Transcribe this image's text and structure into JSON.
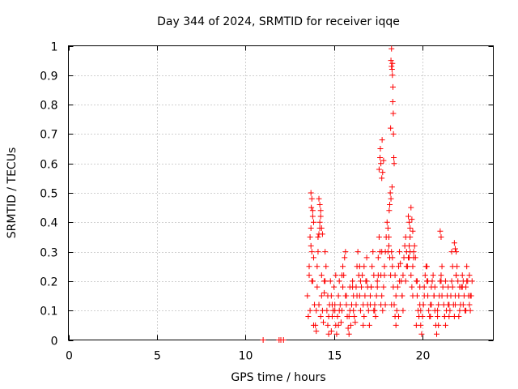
{
  "chart_data": {
    "type": "scatter",
    "title": "Day 344 of 2024, SRMTID for receiver iqqe",
    "xlabel": "GPS time / hours",
    "ylabel": "SRMTID / TECUs",
    "xlim": [
      0,
      24
    ],
    "ylim": [
      0,
      1
    ],
    "xticks": [
      "0",
      "5",
      "10",
      "15",
      "20"
    ],
    "xtick_values": [
      0,
      5,
      10,
      15,
      20
    ],
    "yticks": [
      "0",
      "0.1",
      "0.2",
      "0.3",
      "0.4",
      "0.5",
      "0.6",
      "0.7",
      "0.8",
      "0.9",
      "1"
    ],
    "ytick_values": [
      0,
      0.1,
      0.2,
      0.3,
      0.4,
      0.5,
      0.6,
      0.7,
      0.8,
      0.9,
      1.0
    ],
    "grid": true,
    "marker": "plus",
    "color": "#ff0000",
    "series": [
      {
        "name": "SRMTID",
        "x": [
          11.0,
          11.9,
          12.0,
          12.15,
          13.5,
          13.55,
          13.6,
          13.65,
          13.7,
          13.72,
          13.75,
          13.8,
          13.85,
          13.9,
          13.95,
          14.0,
          14.05,
          14.1,
          14.15,
          14.2,
          14.25,
          14.3,
          14.35,
          14.4,
          14.45,
          14.5,
          14.55,
          14.6,
          14.65,
          14.7,
          14.75,
          14.8,
          14.85,
          14.9,
          14.95,
          15.0,
          15.05,
          15.1,
          15.15,
          15.2,
          15.25,
          15.3,
          15.35,
          15.4,
          15.45,
          15.5,
          15.55,
          15.6,
          15.65,
          15.7,
          15.75,
          15.8,
          15.85,
          15.9,
          15.95,
          16.0,
          16.05,
          16.1,
          16.15,
          16.2,
          16.25,
          16.3,
          16.35,
          16.4,
          16.45,
          16.5,
          16.55,
          16.6,
          16.65,
          16.7,
          16.75,
          16.8,
          16.85,
          16.9,
          16.95,
          17.0,
          17.05,
          17.1,
          17.15,
          17.2,
          17.25,
          17.3,
          17.35,
          17.4,
          17.45,
          17.5,
          17.55,
          17.6,
          17.65,
          17.7,
          17.75,
          17.8,
          17.85,
          17.9,
          17.95,
          18.0,
          18.05,
          18.1,
          18.15,
          18.2,
          18.25,
          18.3,
          18.35,
          18.4,
          18.45,
          18.5,
          18.55,
          18.6,
          18.65,
          18.7,
          18.75,
          18.8,
          18.85,
          18.9,
          18.95,
          19.0,
          19.05,
          19.1,
          19.15,
          19.2,
          19.25,
          19.3,
          19.35,
          19.4,
          19.45,
          19.5,
          19.55,
          19.6,
          19.65,
          19.7,
          19.75,
          19.8,
          19.85,
          19.9,
          19.95,
          20.0,
          20.05,
          20.1,
          20.15,
          20.2,
          20.25,
          20.3,
          20.35,
          20.4,
          20.45,
          20.5,
          20.55,
          20.6,
          20.65,
          20.7,
          20.75,
          20.8,
          20.85,
          20.9,
          20.95,
          21.0,
          21.05,
          21.1,
          21.15,
          21.2,
          21.25,
          21.3,
          21.35,
          21.4,
          21.45,
          21.5,
          21.55,
          21.6,
          21.65,
          21.7,
          21.75,
          21.8,
          21.85,
          21.9,
          21.95,
          22.0,
          22.05,
          22.1,
          22.15,
          22.2,
          22.25,
          22.3,
          22.35,
          22.4,
          22.45,
          22.5,
          22.55,
          22.6,
          22.65,
          22.7,
          22.75,
          22.8,
          13.6,
          13.7,
          13.8,
          14.0,
          14.1,
          14.2,
          14.3,
          14.5,
          14.7,
          14.9,
          15.1,
          15.3,
          15.5,
          15.7,
          15.9,
          16.1,
          16.3,
          16.5,
          16.7,
          16.9,
          17.1,
          17.3,
          17.5,
          17.7,
          17.9,
          18.1,
          18.3,
          18.5,
          18.7,
          18.9,
          19.1,
          19.3,
          19.5,
          19.7,
          19.9,
          20.1,
          20.3,
          20.5,
          20.7,
          20.9,
          21.1,
          21.3,
          21.5,
          21.7,
          21.9,
          22.1,
          22.3,
          22.5,
          22.7,
          13.65,
          13.75,
          13.85,
          14.05,
          14.15,
          14.25,
          14.45,
          14.65,
          14.85,
          15.05,
          15.25,
          15.45,
          15.65,
          15.85,
          16.05,
          16.25,
          16.45,
          16.65,
          16.85,
          17.05,
          17.25,
          17.45,
          17.65,
          17.85,
          18.05,
          18.25,
          18.45,
          18.65,
          18.85,
          19.05,
          19.25,
          19.45,
          19.65,
          19.85,
          20.05,
          20.25,
          20.45,
          20.65,
          20.85,
          21.05,
          21.25,
          21.45,
          21.65,
          21.85,
          22.05,
          22.25,
          22.45,
          22.65,
          17.55,
          17.6,
          17.62,
          17.65,
          17.7,
          17.72,
          17.75,
          17.8,
          18.2,
          18.22,
          18.25,
          18.28,
          18.3,
          18.32,
          18.35,
          18.38,
          18.4,
          18.25,
          18.3,
          18.33,
          18.36,
          18.28,
          18.22,
          18.18,
          18.15,
          18.12,
          13.7,
          13.75,
          13.8,
          13.85,
          14.15,
          14.2,
          14.25,
          14.3,
          14.35,
          19.2,
          19.25,
          19.3,
          19.35,
          19.4,
          19.45,
          21.0,
          21.05,
          21.8,
          21.85,
          21.9
        ],
        "y": [
          0.0,
          0.0,
          0.0,
          0.0,
          0.15,
          0.08,
          0.22,
          0.35,
          0.38,
          0.45,
          0.3,
          0.42,
          0.28,
          0.12,
          0.05,
          0.03,
          0.18,
          0.3,
          0.36,
          0.4,
          0.44,
          0.22,
          0.1,
          0.06,
          0.16,
          0.3,
          0.25,
          0.1,
          0.05,
          0.02,
          0.12,
          0.2,
          0.15,
          0.08,
          0.1,
          0.18,
          0.12,
          0.05,
          0.02,
          0.08,
          0.15,
          0.2,
          0.12,
          0.06,
          0.1,
          0.18,
          0.22,
          0.28,
          0.3,
          0.15,
          0.08,
          0.04,
          0.02,
          0.1,
          0.05,
          0.12,
          0.2,
          0.15,
          0.08,
          0.06,
          0.18,
          0.25,
          0.3,
          0.22,
          0.15,
          0.1,
          0.18,
          0.22,
          0.12,
          0.08,
          0.15,
          0.2,
          0.28,
          0.18,
          0.1,
          0.05,
          0.12,
          0.18,
          0.25,
          0.3,
          0.22,
          0.12,
          0.08,
          0.15,
          0.2,
          0.28,
          0.35,
          0.3,
          0.22,
          0.15,
          0.1,
          0.18,
          0.25,
          0.3,
          0.35,
          0.4,
          0.38,
          0.32,
          0.28,
          0.22,
          0.3,
          0.25,
          0.18,
          0.12,
          0.08,
          0.05,
          0.1,
          0.18,
          0.25,
          0.3,
          0.26,
          0.2,
          0.15,
          0.22,
          0.28,
          0.32,
          0.35,
          0.3,
          0.25,
          0.28,
          0.32,
          0.3,
          0.22,
          0.18,
          0.25,
          0.3,
          0.32,
          0.28,
          0.2,
          0.15,
          0.1,
          0.08,
          0.12,
          0.05,
          0.02,
          0.08,
          0.12,
          0.18,
          0.22,
          0.25,
          0.2,
          0.15,
          0.1,
          0.08,
          0.12,
          0.18,
          0.2,
          0.22,
          0.15,
          0.1,
          0.05,
          0.02,
          0.08,
          0.12,
          0.15,
          0.2,
          0.22,
          0.25,
          0.18,
          0.12,
          0.08,
          0.05,
          0.1,
          0.15,
          0.12,
          0.08,
          0.1,
          0.15,
          0.2,
          0.18,
          0.12,
          0.08,
          0.15,
          0.22,
          0.25,
          0.2,
          0.15,
          0.1,
          0.12,
          0.18,
          0.22,
          0.2,
          0.15,
          0.1,
          0.18,
          0.25,
          0.2,
          0.15,
          0.12,
          0.1,
          0.15,
          0.2,
          0.25,
          0.32,
          0.2,
          0.1,
          0.35,
          0.38,
          0.15,
          0.2,
          0.08,
          0.12,
          0.22,
          0.1,
          0.25,
          0.12,
          0.18,
          0.1,
          0.15,
          0.2,
          0.25,
          0.12,
          0.18,
          0.1,
          0.22,
          0.3,
          0.12,
          0.35,
          0.28,
          0.15,
          0.2,
          0.1,
          0.25,
          0.35,
          0.28,
          0.2,
          0.1,
          0.15,
          0.2,
          0.12,
          0.18,
          0.05,
          0.15,
          0.2,
          0.12,
          0.25,
          0.22,
          0.18,
          0.12,
          0.2,
          0.15,
          0.1,
          0.2,
          0.05,
          0.25,
          0.12,
          0.08,
          0.2,
          0.15,
          0.03,
          0.1,
          0.05,
          0.22,
          0.15,
          0.08,
          0.18,
          0.12,
          0.25,
          0.05,
          0.2,
          0.15,
          0.1,
          0.18,
          0.12,
          0.22,
          0.3,
          0.12,
          0.22,
          0.08,
          0.15,
          0.2,
          0.28,
          0.15,
          0.05,
          0.18,
          0.12,
          0.25,
          0.08,
          0.15,
          0.1,
          0.2,
          0.08,
          0.18,
          0.3,
          0.12,
          0.08,
          0.18,
          0.1,
          0.22,
          0.58,
          0.62,
          0.65,
          0.6,
          0.55,
          0.68,
          0.57,
          0.61,
          0.72,
          0.95,
          0.93,
          0.92,
          0.9,
          0.81,
          0.77,
          0.62,
          0.6,
          0.99,
          0.94,
          0.86,
          0.7,
          0.52,
          0.48,
          0.5,
          0.46,
          0.44,
          0.5,
          0.48,
          0.44,
          0.4,
          0.48,
          0.46,
          0.42,
          0.38,
          0.36,
          0.42,
          0.4,
          0.38,
          0.45,
          0.41,
          0.37,
          0.37,
          0.35,
          0.33,
          0.31,
          0.3
        ]
      }
    ]
  }
}
